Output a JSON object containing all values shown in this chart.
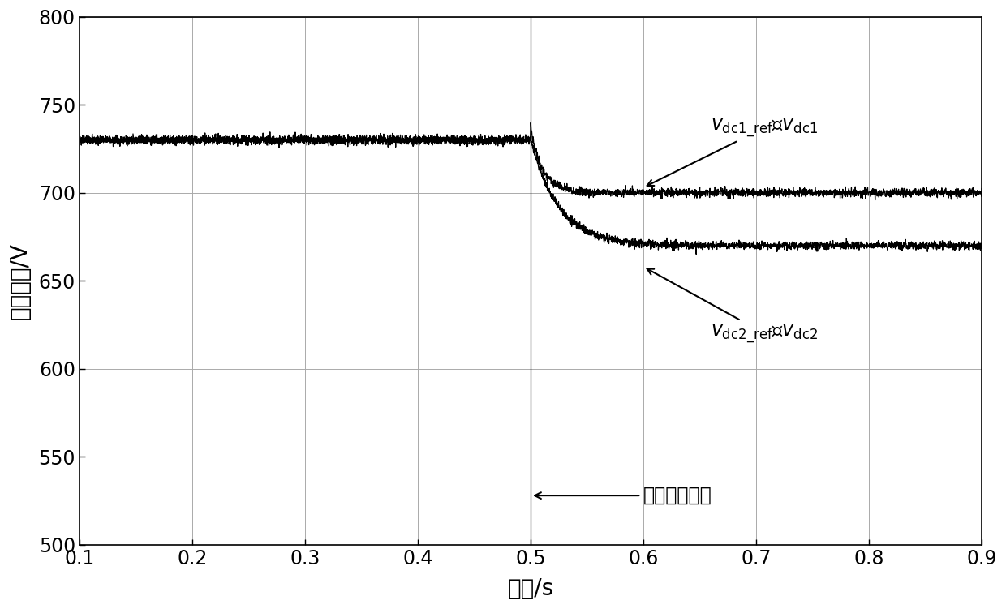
{
  "xlim": [
    0.1,
    0.9
  ],
  "ylim": [
    500,
    800
  ],
  "xticks": [
    0.1,
    0.2,
    0.3,
    0.4,
    0.5,
    0.6,
    0.7,
    0.8,
    0.9
  ],
  "yticks": [
    500,
    550,
    600,
    650,
    700,
    750,
    800
  ],
  "xlabel": "时间/s",
  "ylabel": "直流电压/V",
  "vdc1_before": 730,
  "vdc1_after": 700,
  "vdc2_before": 730,
  "vdc2_after": 670,
  "t_switch": 0.5,
  "noise_amplitude": 1.2,
  "line_color": "#000000",
  "background_color": "#ffffff",
  "grid_color": "#aaaaaa",
  "figsize": [
    12.4,
    7.51
  ],
  "dpi": 100,
  "font_size_labels": 20,
  "font_size_ticks": 17,
  "font_size_annotations": 17,
  "linewidth": 0.9
}
